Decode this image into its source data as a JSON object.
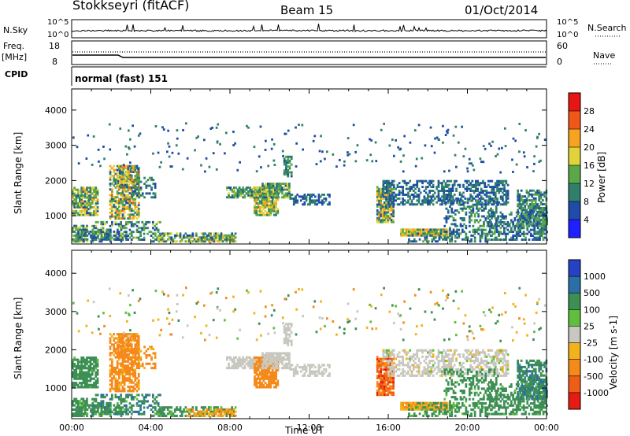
{
  "header": {
    "station": "Stokkseyri (fitACF)",
    "beam": "Beam 15",
    "date": "01/Oct/2014"
  },
  "strips": {
    "nsky": {
      "label": "N.Sky",
      "tick_top": "10^5",
      "tick_bottom": "10^0",
      "right_label": "N.Search"
    },
    "freq": {
      "label_line1": "Freq.",
      "label_line2": "[MHz]",
      "tick_top": "18",
      "tick_bottom": "8",
      "right_tick_top": "60",
      "right_tick_bottom": "0",
      "right_label": "Nave"
    },
    "cpid": {
      "label": "CPID",
      "mode": "normal (fast) 151"
    }
  },
  "chart_data": [
    {
      "type": "heatmap",
      "title": "Power [dB]",
      "ylabel": "Slant Range [km]",
      "ylim": [
        200,
        4600
      ],
      "yticks": [
        1000,
        2000,
        3000,
        4000
      ],
      "xlim": [
        0,
        24
      ],
      "colorbar": {
        "label": "Power [dB]",
        "ticks": [
          "4",
          "8",
          "12",
          "16",
          "20",
          "24",
          "28"
        ],
        "colors": [
          "#1f1fff",
          "#1e4ca8",
          "#2f7f6b",
          "#5aa84a",
          "#e0d43a",
          "#f7a31f",
          "#f0581a",
          "#e81515"
        ]
      }
    },
    {
      "type": "heatmap",
      "title": "Velocity [m s-1]",
      "ylabel": "Slant Range [km]",
      "ylim": [
        200,
        4600
      ],
      "yticks": [
        1000,
        2000,
        3000,
        4000
      ],
      "xlim": [
        0,
        24
      ],
      "xlabel": "Time UT",
      "xticks": [
        "00:00",
        "04:00",
        "08:00",
        "12:00",
        "16:00",
        "20:00",
        "00:00"
      ],
      "colorbar": {
        "label": "Velocity [m s-1]",
        "ticks": [
          "1000",
          "500",
          "100",
          "25",
          "-25",
          "-100",
          "-500",
          "-1000"
        ],
        "colors": [
          "#2642c4",
          "#2a6fa6",
          "#3d8f55",
          "#5fbf3d",
          "#c8c8c0",
          "#f2b21c",
          "#f58a1b",
          "#ee5e17",
          "#e61b13"
        ]
      }
    }
  ]
}
